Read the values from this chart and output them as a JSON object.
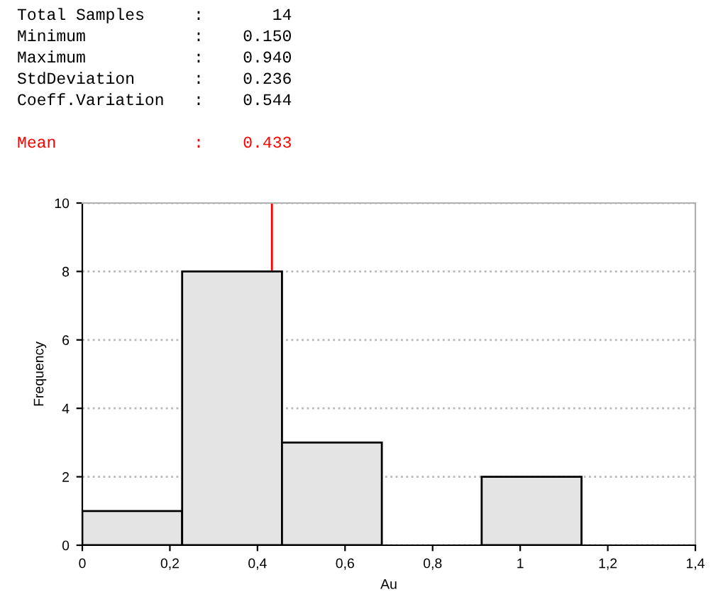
{
  "chart_data": {
    "type": "histogram",
    "bins": [
      0,
      0.228,
      0.456,
      0.684,
      0.912,
      1.14
    ],
    "values": [
      1,
      8,
      3,
      0,
      2
    ],
    "color": "#e4e4e4",
    "xlabel": "Au",
    "ylabel": "Frequency",
    "xlim": [
      0,
      1.4
    ],
    "xticks": [
      0,
      {
        "value": 0.2,
        "label": "0,2"
      },
      {
        "value": 0.4,
        "label": "0,4"
      },
      {
        "value": 0.6,
        "label": "0,6"
      },
      {
        "value": 0.8,
        "label": "0,8"
      },
      1,
      {
        "value": 1.2,
        "label": "1,2"
      },
      {
        "value": 1.4,
        "label": "1,4"
      }
    ],
    "ylim": [
      0,
      10
    ],
    "yticks": [
      0,
      2,
      4,
      6,
      8,
      10
    ],
    "grid": "y",
    "ref_lines": [
      {
        "axis": "x",
        "value": 0.433,
        "label": "Mean              :    0.433",
        "color": "#ff0000"
      }
    ],
    "annotations": [
      "Total Samples     :       14",
      "Minimum           :    0.150",
      "Maximum           :    0.940",
      "StdDeviation      :    0.236",
      "Coeff.Variation   :    0.544"
    ]
  }
}
